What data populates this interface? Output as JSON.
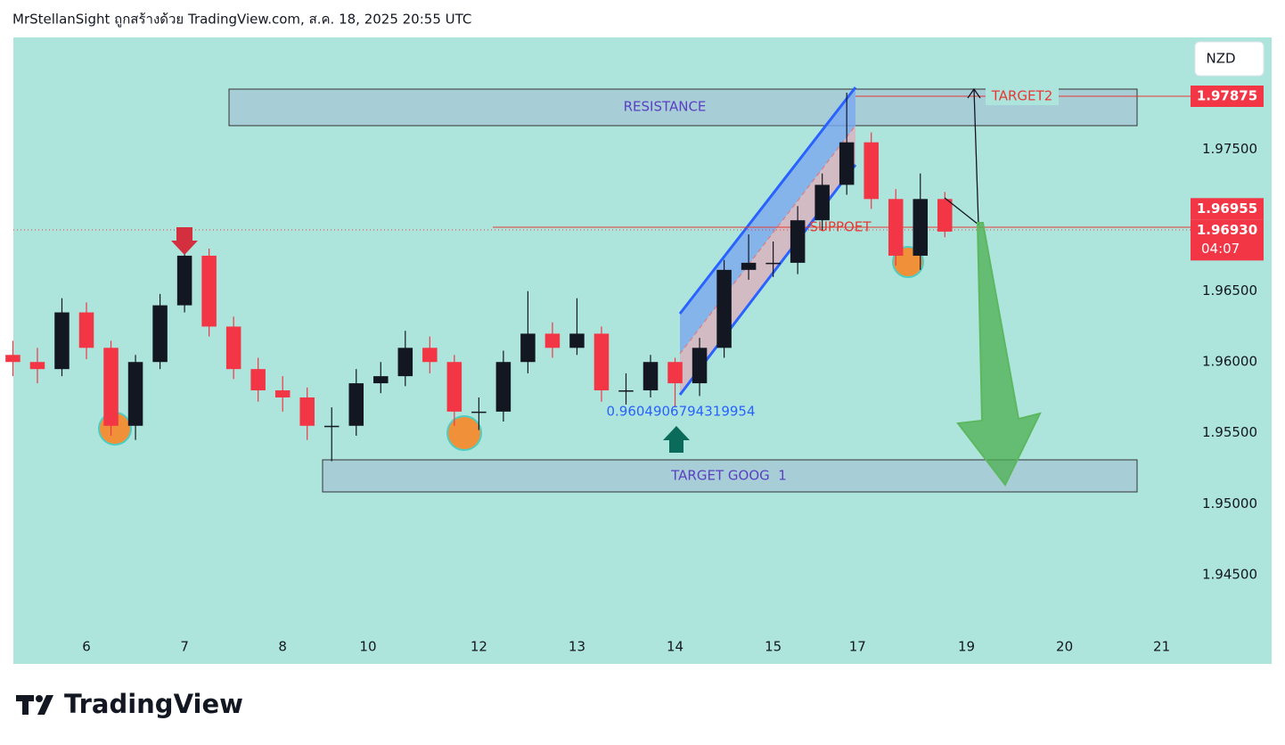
{
  "attribution": "MrStellanSight ถูกสร้างด้วย TradingView.com, ส.ค. 18, 2025 20:55 UTC",
  "brand": "TradingView",
  "chart_data": {
    "type": "candlestick",
    "currency": "NZD",
    "up_color": "#131722",
    "down_color": "#f23645",
    "xlim": [
      -0.745,
      11.2
    ],
    "ylim": [
      1.9387,
      1.9829
    ],
    "xticks": [
      {
        "value": 0,
        "label": "6"
      },
      {
        "value": 1,
        "label": "7"
      },
      {
        "value": 2,
        "label": "8"
      },
      {
        "value": 2.87,
        "label": "10"
      },
      {
        "value": 4,
        "label": "12"
      },
      {
        "value": 5,
        "label": "13"
      },
      {
        "value": 6,
        "label": "14"
      },
      {
        "value": 7,
        "label": "15"
      },
      {
        "value": 7.86,
        "label": "17"
      },
      {
        "value": 8.97,
        "label": "19"
      },
      {
        "value": 9.97,
        "label": "20"
      },
      {
        "value": 10.96,
        "label": "21"
      }
    ],
    "yticks": [
      {
        "value": 1.945,
        "label": "1.94500"
      },
      {
        "value": 1.95,
        "label": "1.95000"
      },
      {
        "value": 1.955,
        "label": "1.95500"
      },
      {
        "value": 1.96,
        "label": "1.96000"
      },
      {
        "value": 1.965,
        "label": "1.96500"
      },
      {
        "value": 1.975,
        "label": "1.97500"
      }
    ],
    "x": [
      -0.75,
      -0.5,
      -0.25,
      0,
      0.25,
      0.5,
      0.75,
      1,
      1.25,
      1.5,
      1.75,
      2,
      2.25,
      2.5,
      2.75,
      3,
      3.25,
      3.5,
      3.75,
      4,
      4.25,
      4.5,
      4.75,
      5,
      5.25,
      5.5,
      5.75,
      6,
      6.25,
      6.5,
      6.75,
      7,
      7.25,
      7.5,
      7.75,
      8,
      8.25,
      8.5,
      8.75
    ],
    "open": [
      1.9605,
      1.96,
      1.9595,
      1.9635,
      1.961,
      1.9555,
      1.96,
      1.964,
      1.9675,
      1.9625,
      1.9595,
      1.958,
      1.9575,
      1.9555,
      1.9555,
      1.9585,
      1.959,
      1.961,
      1.96,
      1.9565,
      1.9565,
      1.96,
      1.962,
      1.961,
      1.962,
      1.958,
      1.958,
      1.96,
      1.9585,
      1.961,
      1.9665,
      1.967,
      1.967,
      1.97,
      1.9725,
      1.9755,
      1.9715,
      1.9675,
      1.9715
    ],
    "high": [
      1.9615,
      1.961,
      1.9645,
      1.9642,
      1.9615,
      1.9605,
      1.9648,
      1.9683,
      1.968,
      1.9632,
      1.9603,
      1.959,
      1.9582,
      1.9568,
      1.9595,
      1.96,
      1.9622,
      1.9618,
      1.9605,
      1.9575,
      1.9608,
      1.965,
      1.9628,
      1.9645,
      1.9625,
      1.9592,
      1.9605,
      1.9603,
      1.9617,
      1.9672,
      1.969,
      1.9685,
      1.971,
      1.9733,
      1.979,
      1.9762,
      1.9722,
      1.9733,
      1.972
    ],
    "low": [
      1.959,
      1.9585,
      1.959,
      1.9602,
      1.9548,
      1.9545,
      1.9595,
      1.9635,
      1.9618,
      1.9588,
      1.9572,
      1.9565,
      1.9545,
      1.953,
      1.9548,
      1.9578,
      1.9583,
      1.9592,
      1.9555,
      1.9552,
      1.9558,
      1.9592,
      1.9603,
      1.9605,
      1.9572,
      1.957,
      1.9575,
      1.9568,
      1.9576,
      1.9603,
      1.9658,
      1.966,
      1.9662,
      1.9693,
      1.9718,
      1.9708,
      1.9668,
      1.9665,
      1.9688
    ],
    "close": [
      1.96,
      1.9595,
      1.9635,
      1.961,
      1.9555,
      1.96,
      1.964,
      1.9675,
      1.9625,
      1.9595,
      1.958,
      1.9575,
      1.9555,
      1.9555,
      1.9585,
      1.959,
      1.961,
      1.96,
      1.9565,
      1.9565,
      1.96,
      1.962,
      1.961,
      1.962,
      1.958,
      1.958,
      1.96,
      1.9585,
      1.961,
      1.9665,
      1.967,
      1.967,
      1.97,
      1.9725,
      1.9755,
      1.9715,
      1.9675,
      1.9715,
      1.9692
    ],
    "price_labels": [
      {
        "value": 1.97875,
        "label": "1.97875"
      },
      {
        "value": 1.96955,
        "label": "1.96955"
      },
      {
        "value": 1.9693,
        "label": "1.96930"
      }
    ],
    "countdown": "04:07",
    "annotations": {
      "resistance": "RESISTANCE",
      "target1": "TARGET GOOG  1",
      "target2": "TARGET2",
      "support": "SUPPOET",
      "channel_note": "0.9604906794319954"
    }
  }
}
